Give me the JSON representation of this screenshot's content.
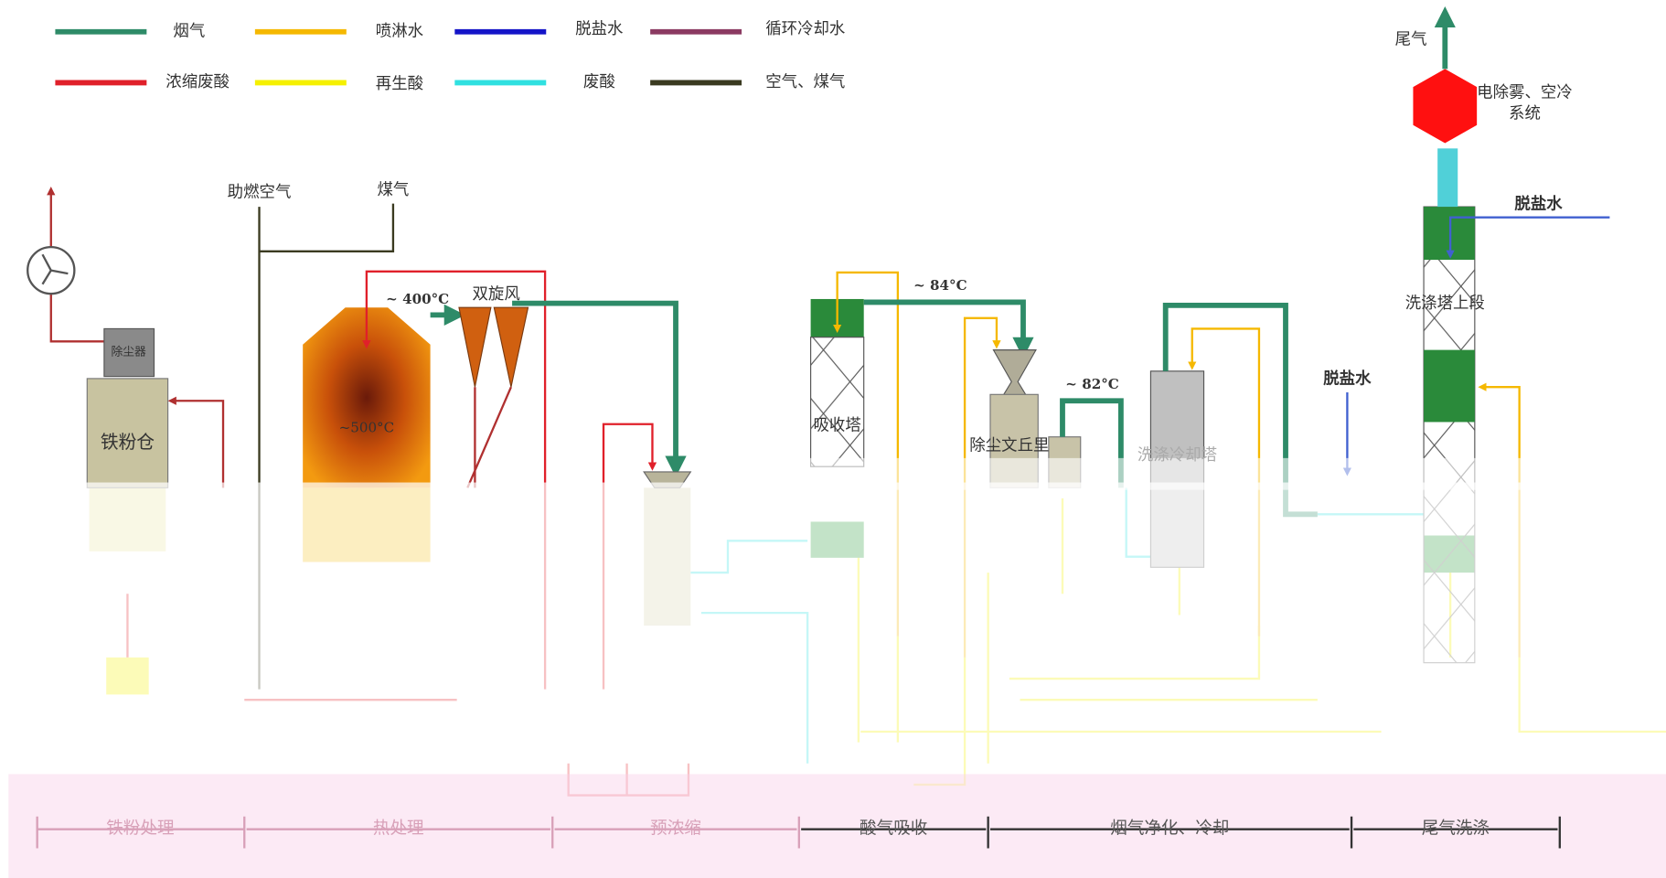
{
  "legend": [
    "烟气",
    "喷淋水",
    "脱盐水",
    "循环冷却水",
    "浓缩废酸",
    "再生酸",
    "废酸",
    "空气、煤气"
  ],
  "labels": {
    "tail_gas": "尾气",
    "demister": "电除雾、空冷",
    "demister_2": "系统",
    "demin_top": "脱盐水",
    "wash_upper": "洗涤塔上段",
    "demin_mid": "脱盐水",
    "combustion_air": "助燃空气",
    "fuel_gas": "煤气",
    "t400": "~ 400°C",
    "twin_cyclone": "双旋风",
    "t84": "~ 84°C",
    "t82": "~ 82°C",
    "dust_collector": "除尘器",
    "iron_bin": "铁粉仓",
    "t500": "~500°C",
    "absorber": "吸收塔",
    "venturi": "除尘文丘里",
    "wash_cooler": "洗涤冷却塔"
  },
  "sections": [
    "铁粉处理",
    "热处理",
    "预浓缩",
    "酸气吸收",
    "烟气净化、冷却",
    "尾气洗涤"
  ]
}
